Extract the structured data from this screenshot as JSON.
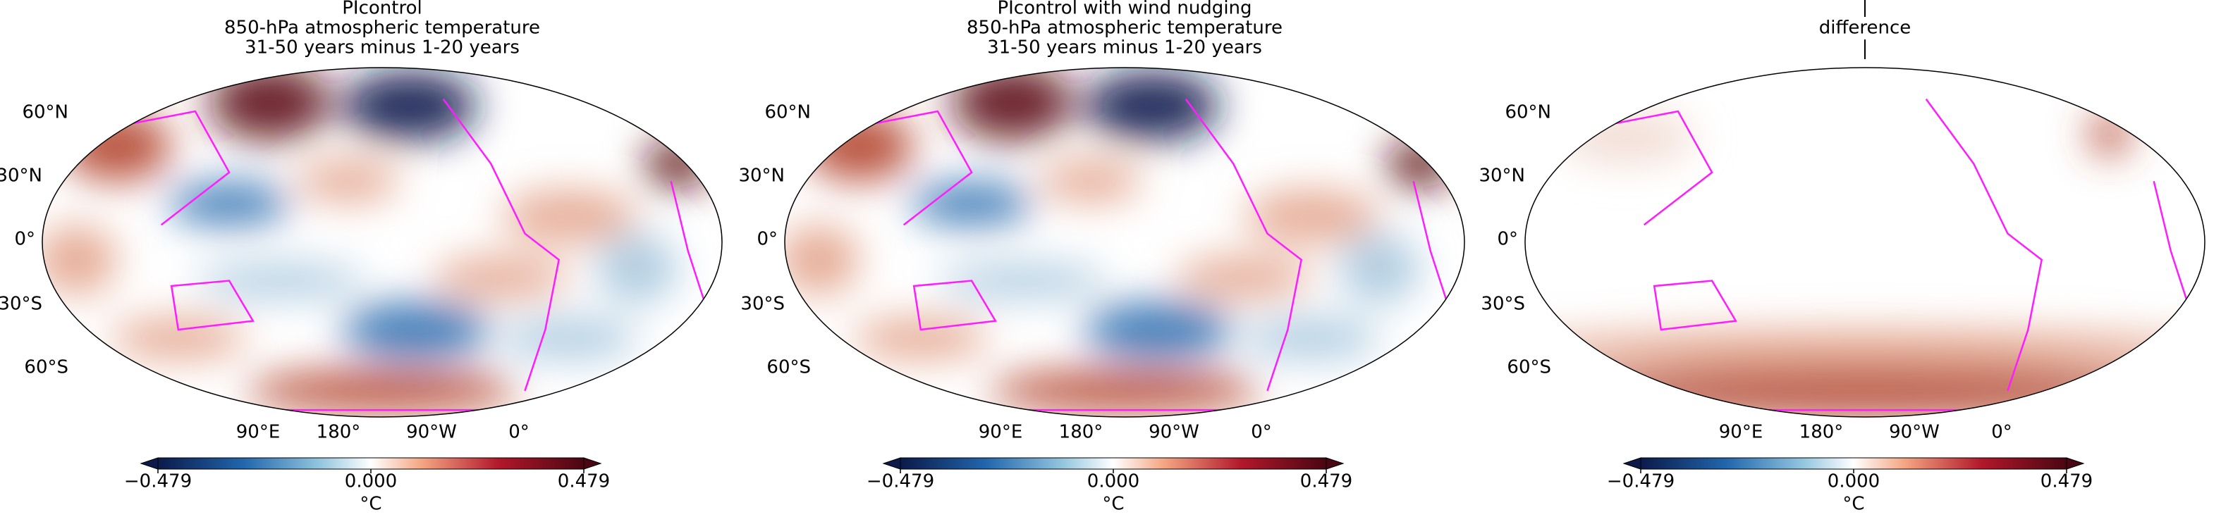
{
  "panels": [
    {
      "title_lines": [
        "PIcontrol",
        "850-hPa atmospheric temperature",
        "31-50 years minus 1-20 years"
      ],
      "lat_labels": [
        "60°N",
        "30°N",
        "0°",
        "30°S",
        "60°S"
      ],
      "lon_labels": [
        "90°E",
        "180°",
        "90°W",
        "0°"
      ],
      "colorbar": {
        "ticks": [
          {
            "value": -0.479,
            "label": "−0.479"
          },
          {
            "value": 0,
            "label": "0.000"
          },
          0.479
        ],
        "unit": "°C"
      }
    },
    {
      "title_lines": [
        "PIcontrol with wind nudging",
        "850-hPa atmospheric temperature",
        "31-50 years minus 1-20 years"
      ],
      "lat_labels": [
        "60°N",
        "30°N",
        "0°",
        "30°S",
        "60°S"
      ],
      "lon_labels": [
        "90°E",
        "180°",
        "90°W",
        "0°"
      ],
      "colorbar": {
        "ticks": [
          {
            "value": -0.479,
            "label": "−0.479"
          },
          {
            "value": 0,
            "label": "0.000"
          },
          0.479
        ],
        "unit": "°C"
      }
    },
    {
      "title_lines": [
        "difference"
      ],
      "lat_labels": [
        "60°N",
        "30°N",
        "0°",
        "30°S",
        "60°S"
      ],
      "lon_labels": [
        "90°E",
        "180°",
        "90°W",
        "0°"
      ],
      "colorbar": {
        "ticks": [
          {
            "value": -0.479,
            "label": "−0.479"
          },
          {
            "value": 0,
            "label": "0.000"
          },
          0.479
        ],
        "unit": "°C"
      }
    }
  ]
}
